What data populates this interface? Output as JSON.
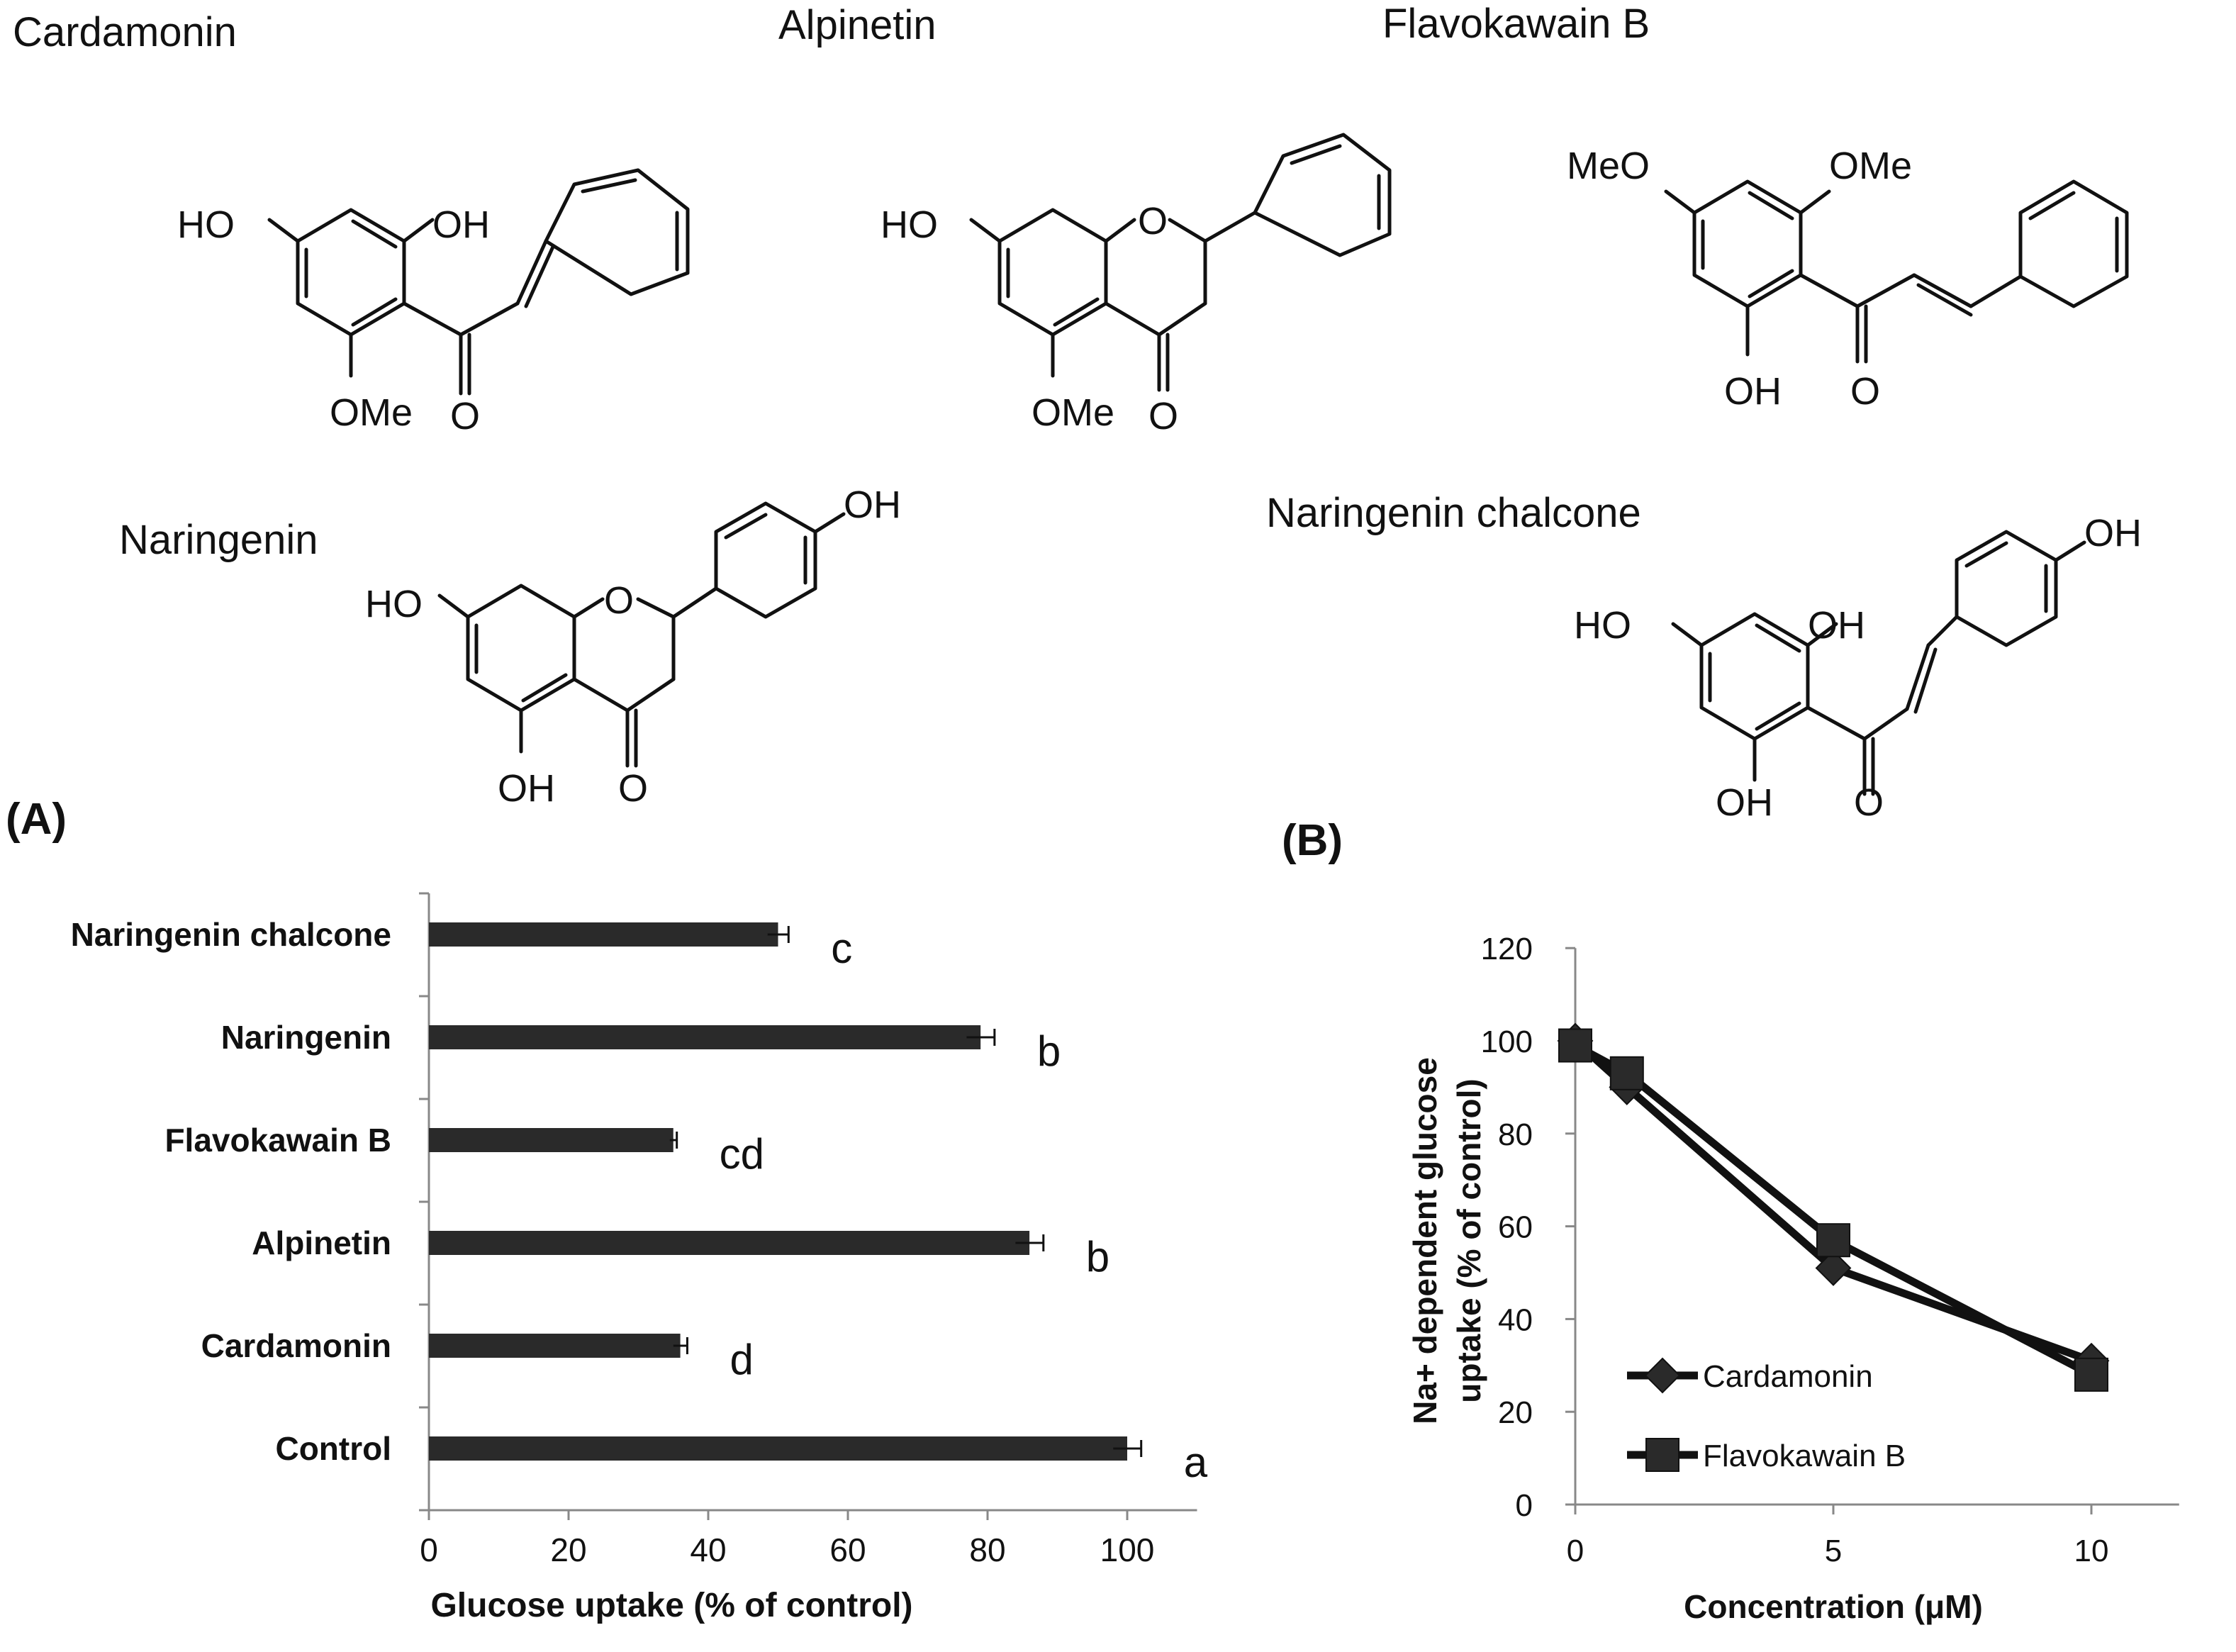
{
  "structures": {
    "cardamonin": {
      "name": "Cardamonin",
      "labels": [
        "HO",
        "OH",
        "OMe",
        "O"
      ]
    },
    "alpinetin": {
      "name": "Alpinetin",
      "labels": [
        "HO",
        "O",
        "OMe",
        "O"
      ]
    },
    "flavokawain_b": {
      "name": "Flavokawain B",
      "labels": [
        "MeO",
        "OMe",
        "OH",
        "O"
      ]
    },
    "naringenin": {
      "name": "Naringenin",
      "labels": [
        "HO",
        "O",
        "OH",
        "OH",
        "O"
      ]
    },
    "naringenin_chalcone": {
      "name": "Naringenin chalcone",
      "labels": [
        "HO",
        "OH",
        "OH",
        "OH",
        "O"
      ]
    }
  },
  "panel_labels": {
    "a": "(A)",
    "b": "(B)"
  },
  "chart_data": [
    {
      "id": "A",
      "type": "bar",
      "orientation": "horizontal",
      "categories": [
        "Naringenin chalcone",
        "Naringenin",
        "Flavokawain B",
        "Alpinetin",
        "Cardamonin",
        "Control"
      ],
      "values": [
        50,
        79,
        35,
        86,
        36,
        100
      ],
      "errors": [
        1.5,
        2,
        0.5,
        2,
        1,
        2
      ],
      "significance_letters": [
        "c",
        "b",
        "cd",
        "b",
        "d",
        "a"
      ],
      "title": "",
      "xlabel": "Glucose uptake (% of control)",
      "ylabel": "",
      "xlim": [
        0,
        110
      ],
      "xticks": [
        "0",
        "20",
        "40",
        "60",
        "80",
        "100"
      ],
      "grid": false,
      "bar_color": "#2a2a2a"
    },
    {
      "id": "B",
      "type": "line",
      "x": [
        0,
        1,
        5,
        10
      ],
      "x_plot_positions": [
        0,
        1,
        5,
        10
      ],
      "series": [
        {
          "name": "Cardamonin",
          "marker": "diamond",
          "values": [
            100,
            90,
            51,
            31
          ]
        },
        {
          "name": "Flavokawain B",
          "marker": "square",
          "values": [
            99,
            93,
            57,
            28
          ]
        }
      ],
      "title": "",
      "xlabel": "Concentration (μM)",
      "ylabel": "Na+ dependent glucose uptake (% of control)",
      "ylabel_lines": [
        "Na+ dependent glucose",
        "uptake (% of control)"
      ],
      "ylim": [
        0,
        120
      ],
      "yticks": [
        "0",
        "20",
        "40",
        "60",
        "80",
        "100",
        "120"
      ],
      "xticks": [
        "0",
        "5",
        "10"
      ],
      "grid": false,
      "legend": "bottom-left"
    }
  ]
}
